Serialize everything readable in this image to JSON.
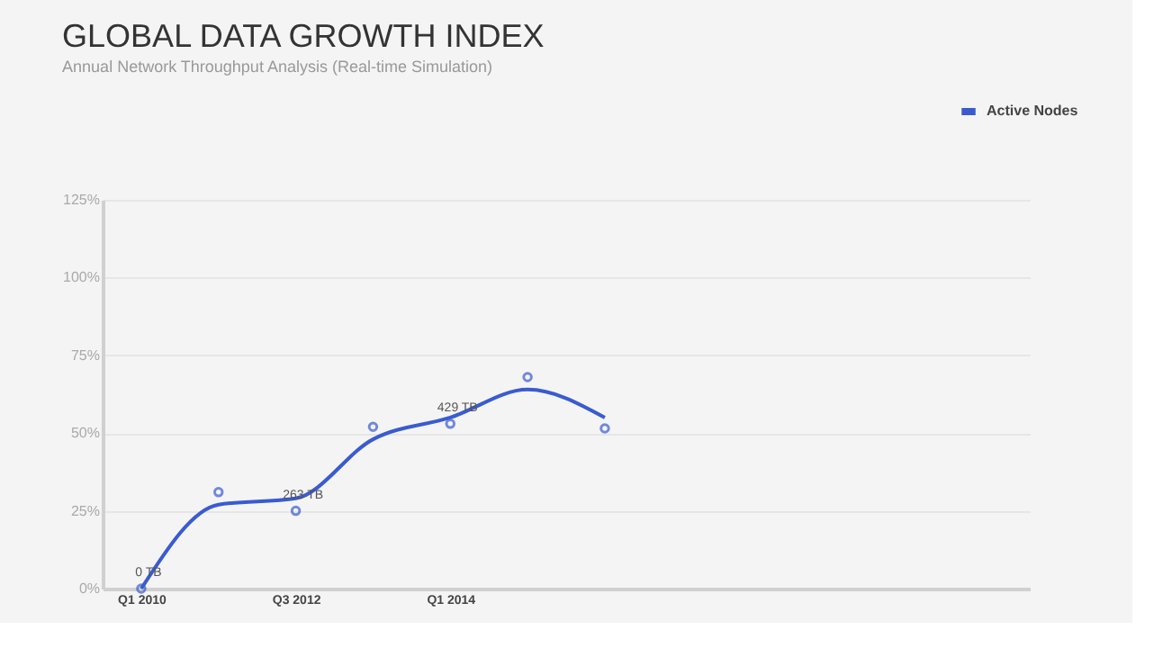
{
  "chart_data": {
    "type": "line",
    "title": "GLOBAL DATA GROWTH INDEX",
    "subtitle": "Annual Network Throughput Analysis (Real-time Simulation)",
    "categories": [
      "Q1 2010",
      null,
      "Q3 2012",
      null,
      "Q1 2014",
      null,
      null,
      null,
      null,
      null,
      null,
      null
    ],
    "series": [
      {
        "name": "Active Nodes",
        "color": "#3a5bd0",
        "values": [
          0,
          27,
          29,
          48,
          55,
          64,
          55,
          null,
          null,
          null,
          null,
          null
        ]
      },
      {
        "type": "scatter",
        "color": "#3a5bd0",
        "marker": "circle",
        "values": [
          0,
          31,
          25,
          52,
          53,
          68,
          51.5,
          null,
          null,
          null,
          null,
          null
        ]
      }
    ],
    "annotations": [
      {
        "text": "0 TB",
        "x": "Q1 2010",
        "y": 0
      },
      {
        "text": "263 TB",
        "x": "Q3 2012",
        "y": 25
      },
      {
        "text": "429 TB",
        "x": "Q1 2014",
        "y": 53
      }
    ],
    "ylim": [
      0,
      125
    ],
    "yticks": [
      {
        "value": 0,
        "label": "0%"
      },
      {
        "value": 25,
        "label": "25%"
      },
      {
        "value": 50,
        "label": "50%"
      },
      {
        "value": 75,
        "label": "75%"
      },
      {
        "value": 100,
        "label": "100%"
      },
      {
        "value": 125,
        "label": "125%"
      }
    ],
    "grid": "y",
    "legend": "top right"
  }
}
